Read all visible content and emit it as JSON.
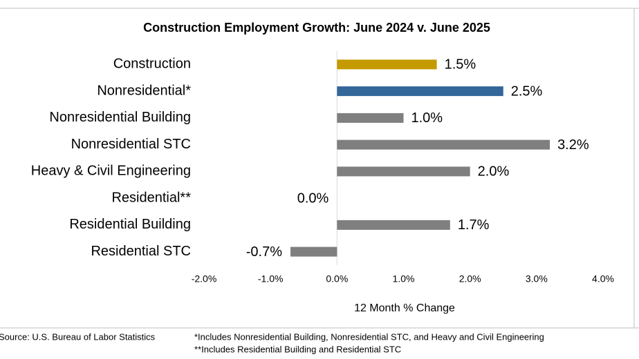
{
  "chart_data": {
    "type": "bar",
    "orientation": "horizontal",
    "title": "Construction Employment Growth: June 2024 v. June 2025",
    "x_label": "12 Month % Change",
    "categories": [
      "Construction",
      "Nonresidential*",
      "Nonresidential Building",
      "Nonresidential STC",
      "Heavy & Civil Engineering",
      "Residential**",
      "Residential Building",
      "Residential STC"
    ],
    "values": [
      1.5,
      2.5,
      1.0,
      3.2,
      2.0,
      0.0,
      1.7,
      -0.7
    ],
    "value_labels": [
      "1.5%",
      "2.5%",
      "1.0%",
      "3.2%",
      "2.0%",
      "0.0%",
      "1.7%",
      "-0.7%"
    ],
    "colors": [
      "#c49a00",
      "#336699",
      "#7f7f7f",
      "#7f7f7f",
      "#7f7f7f",
      "#336699",
      "#7f7f7f",
      "#7f7f7f"
    ],
    "xlim": [
      -2,
      4
    ],
    "xticks": [
      {
        "value": -2,
        "label": "-2.0%"
      },
      {
        "value": -1,
        "label": "-1.0%"
      },
      {
        "value": 0,
        "label": "0.0%"
      },
      {
        "value": 1,
        "label": "1.0%"
      },
      {
        "value": 2,
        "label": "2.0%"
      },
      {
        "value": 3,
        "label": "3.0%"
      },
      {
        "value": 4,
        "label": "4.0%"
      }
    ],
    "source": "Source:  U.S. Bureau of Labor Statistics",
    "footnotes": [
      "*Includes Nonresidential Building, Nonresidential STC, and Heavy and Civil Engineering",
      "**Includes Residential Building and Residential STC"
    ]
  }
}
